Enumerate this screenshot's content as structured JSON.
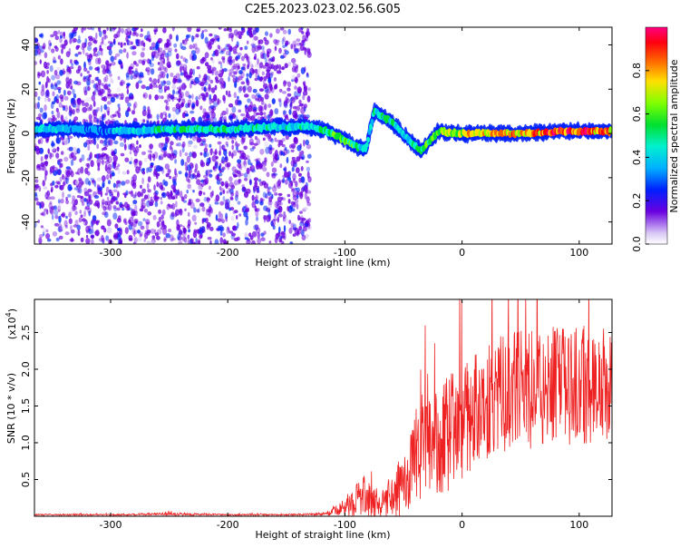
{
  "title": "C2E5.2023.023.02.56.G05",
  "chart_data": [
    {
      "type": "heatmap",
      "xlabel": "Height of straight line (km)",
      "ylabel": "Frequency (Hz)",
      "xlim": [
        -365,
        128
      ],
      "ylim": [
        -50,
        48
      ],
      "x_ticks": [
        -300,
        -200,
        -100,
        0,
        100
      ],
      "y_ticks": [
        -40,
        -20,
        0,
        20,
        40
      ],
      "colorbar": {
        "label": "Normalized spectral amplitude",
        "range": [
          0,
          1
        ],
        "ticks": [
          "0.0",
          "0.2",
          "0.4",
          "0.6",
          "0.8"
        ],
        "tick_values": [
          0.0,
          0.2,
          0.4,
          0.6,
          0.8
        ]
      },
      "ridge": {
        "x": [
          -365,
          -330,
          -300,
          -250,
          -200,
          -160,
          -130,
          -115,
          -100,
          -90,
          -82,
          -75,
          -60,
          -45,
          -35,
          -20,
          0,
          20,
          40,
          60,
          80,
          100,
          128
        ],
        "freq": [
          2,
          2,
          1,
          2,
          2,
          3,
          3,
          1,
          -3,
          -6,
          -7,
          10,
          5,
          -3,
          -8,
          1,
          0,
          0,
          0,
          0,
          1,
          1,
          1
        ],
        "amp": [
          0.35,
          0.3,
          0.3,
          0.45,
          0.45,
          0.4,
          0.4,
          0.5,
          0.55,
          0.5,
          0.35,
          0.4,
          0.45,
          0.35,
          0.5,
          0.6,
          0.65,
          0.75,
          0.8,
          0.8,
          0.85,
          0.85,
          0.85
        ]
      },
      "noise_region": {
        "x": [
          -365,
          -130
        ],
        "amp": 0.15
      }
    },
    {
      "type": "line",
      "xlabel": "Height of straight line (km)",
      "ylabel": "SNR (10 * v/v)",
      "y_scale_label": "(x10",
      "y_scale_exp": "4",
      "xlim": [
        -365,
        128
      ],
      "ylim": [
        0,
        2.95
      ],
      "x_ticks": [
        -300,
        -200,
        -100,
        0,
        100
      ],
      "y_ticks": [
        0.5,
        1.0,
        1.5,
        2.0,
        2.5
      ],
      "y_tick_labels": [
        "0.5",
        "1.0",
        "1.5",
        "2.0",
        "2.5"
      ],
      "series": [
        {
          "color": "#ee2222",
          "x": [
            -365,
            -300,
            -250,
            -200,
            -150,
            -120,
            -110,
            -100,
            -90,
            -80,
            -70,
            -60,
            -50,
            -40,
            -30,
            -20,
            -10,
            0,
            10,
            20,
            30,
            40,
            50,
            60,
            70,
            80,
            90,
            100,
            110,
            120,
            128
          ],
          "mean": [
            0.02,
            0.02,
            0.03,
            0.02,
            0.02,
            0.03,
            0.06,
            0.12,
            0.25,
            0.28,
            0.12,
            0.25,
            0.45,
            0.75,
            0.95,
            1.05,
            1.15,
            1.3,
            1.45,
            1.55,
            1.65,
            1.7,
            1.75,
            1.7,
            1.75,
            1.8,
            1.75,
            1.8,
            1.75,
            1.8,
            1.75
          ],
          "spread": [
            0.01,
            0.01,
            0.02,
            0.01,
            0.01,
            0.02,
            0.05,
            0.12,
            0.25,
            0.3,
            0.12,
            0.3,
            0.45,
            0.6,
            0.7,
            0.75,
            0.8,
            0.8,
            0.8,
            0.8,
            0.8,
            0.8,
            0.8,
            0.8,
            0.8,
            0.8,
            0.8,
            0.8,
            0.8,
            0.8,
            0.8
          ]
        }
      ]
    }
  ]
}
